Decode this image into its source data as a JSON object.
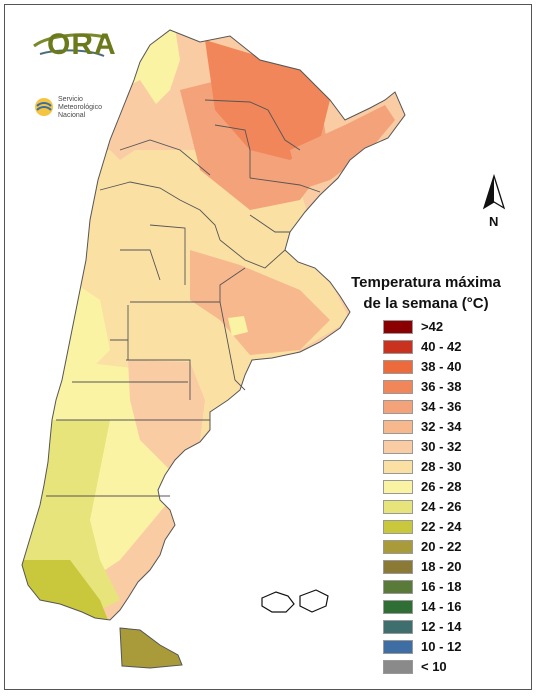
{
  "title": {
    "line1": "Temperatura máxima",
    "line2": "de la semana (°C)"
  },
  "logos": {
    "ora": "ORA",
    "smn_line1": "Servicio",
    "smn_line2": "Meteorológico",
    "smn_line3": "Nacional"
  },
  "north_label": "N",
  "legend": [
    {
      "label": ">42",
      "color": "#8b0000"
    },
    {
      "label": "40 - 42",
      "color": "#c8321e"
    },
    {
      "label": "38 - 40",
      "color": "#ec6a3c"
    },
    {
      "label": "36 - 38",
      "color": "#f0865a"
    },
    {
      "label": "34 - 36",
      "color": "#f3a27a"
    },
    {
      "label": "32 - 34",
      "color": "#f7b88e"
    },
    {
      "label": "30 - 32",
      "color": "#f9cca4"
    },
    {
      "label": "28 - 30",
      "color": "#fbe0a4"
    },
    {
      "label": "26 - 28",
      "color": "#fbf3a4"
    },
    {
      "label": "24 - 26",
      "color": "#e6e47a"
    },
    {
      "label": "22 - 24",
      "color": "#c9c83c"
    },
    {
      "label": "20 - 22",
      "color": "#a99a3a"
    },
    {
      "label": "18 - 20",
      "color": "#8a7a36"
    },
    {
      "label": "16 - 18",
      "color": "#5a7a3a"
    },
    {
      "label": "14 - 16",
      "color": "#2f6e35"
    },
    {
      "label": "12 - 14",
      "color": "#3f6e6e"
    },
    {
      "label": "10 - 12",
      "color": "#3f6ea5"
    },
    {
      "label": "< 10",
      "color": "#8a8a8a"
    }
  ],
  "map_colors": {
    "hot": "#f0865a",
    "warm": "#f3a27a",
    "mild": "#f7b88e",
    "medium": "#f9cca4",
    "light": "#fbe0a4",
    "pale": "#fbf3a4",
    "yellow_green": "#e6e47a",
    "olive": "#c9c83c",
    "brown": "#a99a3a",
    "border": "#555555"
  }
}
